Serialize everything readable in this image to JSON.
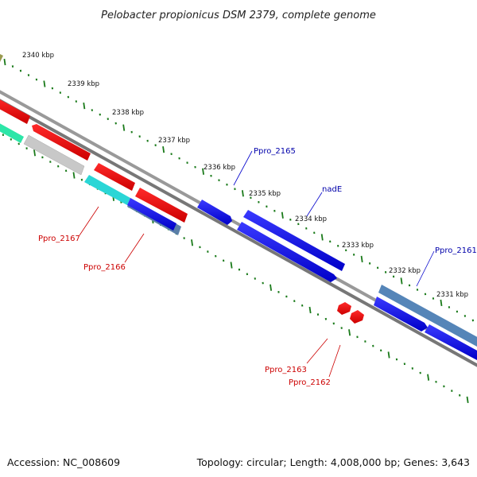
{
  "title": "Pelobacter propionicus DSM 2379, complete genome",
  "footer": {
    "accession": "Accession: NC_008609",
    "summary": "Topology: circular; Length: 4,008,000 bp; Genes: 3,643"
  },
  "ruler": [
    {
      "label": "2340 kbp"
    },
    {
      "label": "2339 kbp"
    },
    {
      "label": "2338 kbp"
    },
    {
      "label": "2337 kbp"
    },
    {
      "label": "2336 kbp"
    },
    {
      "label": "2335 kbp"
    },
    {
      "label": "2334 kbp"
    },
    {
      "label": "2333 kbp"
    },
    {
      "label": "2332 kbp"
    },
    {
      "label": "2331 kbp"
    }
  ],
  "gene_labels": [
    {
      "text": "Ppro_2165",
      "color": "#0000aa"
    },
    {
      "text": "nadE",
      "color": "#0000aa"
    },
    {
      "text": "Ppro_2161",
      "color": "#0000aa"
    },
    {
      "text": "Ppro_2167",
      "color": "#cc0000"
    },
    {
      "text": "Ppro_2166",
      "color": "#cc0000"
    },
    {
      "text": "Ppro_2163",
      "color": "#cc0000"
    },
    {
      "text": "Ppro_2162",
      "color": "#cc0000"
    }
  ],
  "colors": {
    "forward_strand": "#0000ee",
    "reverse_strand": "#ee0000",
    "backbone": "#888888",
    "tick": "#1a7a1a"
  }
}
